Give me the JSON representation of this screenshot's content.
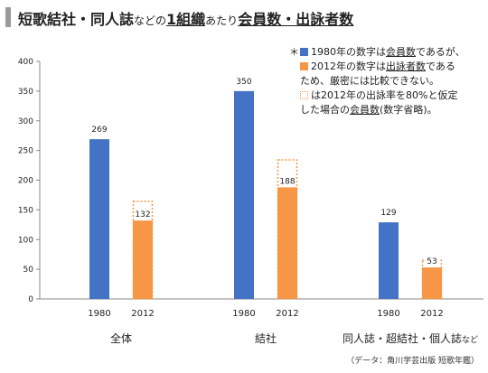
{
  "title": {
    "part1": "短歌結社・同人誌",
    "part2": "などの",
    "part3": "1組織",
    "part4": "あたり",
    "part5": "会員数・出詠者数"
  },
  "note": {
    "star": "＊",
    "line1": {
      "a": "1980年の数字は",
      "b": "会員数",
      "c": "であるが、"
    },
    "line2": {
      "a": "2012年の数字は",
      "b": "出詠者数",
      "c": "である"
    },
    "line3": "ため、厳密には比較できない。",
    "line4": "は2012年の出詠率を80%と仮定",
    "line5": {
      "a": "した場合の",
      "b": "会員数",
      "c": "(数字省略)。"
    }
  },
  "source": "（データ：角川学芸出版 短歌年鑑）",
  "colors": {
    "blue": "#4472c4",
    "orange": "#f79646"
  },
  "chart_data": {
    "type": "bar",
    "ylim": [
      0,
      400
    ],
    "yticks": [
      0,
      50,
      100,
      150,
      200,
      250,
      300,
      350,
      400
    ],
    "groups": [
      {
        "label": "全体",
        "small": "",
        "bars": [
          {
            "year": "1980",
            "value": 269,
            "label": "269",
            "color": "blue"
          },
          {
            "year": "2012",
            "value": 132,
            "label": "132",
            "color": "orange",
            "estimated": 165
          }
        ]
      },
      {
        "label": "結社",
        "small": "",
        "bars": [
          {
            "year": "1980",
            "value": 350,
            "label": "350",
            "color": "blue"
          },
          {
            "year": "2012",
            "value": 188,
            "label": "188",
            "color": "orange",
            "estimated": 235
          }
        ]
      },
      {
        "label": "同人誌・超結社・個人誌",
        "small": "など",
        "bars": [
          {
            "year": "1980",
            "value": 129,
            "label": "129",
            "color": "blue"
          },
          {
            "year": "2012",
            "value": 53,
            "label": "53",
            "color": "orange",
            "estimated": 66
          }
        ]
      }
    ]
  }
}
